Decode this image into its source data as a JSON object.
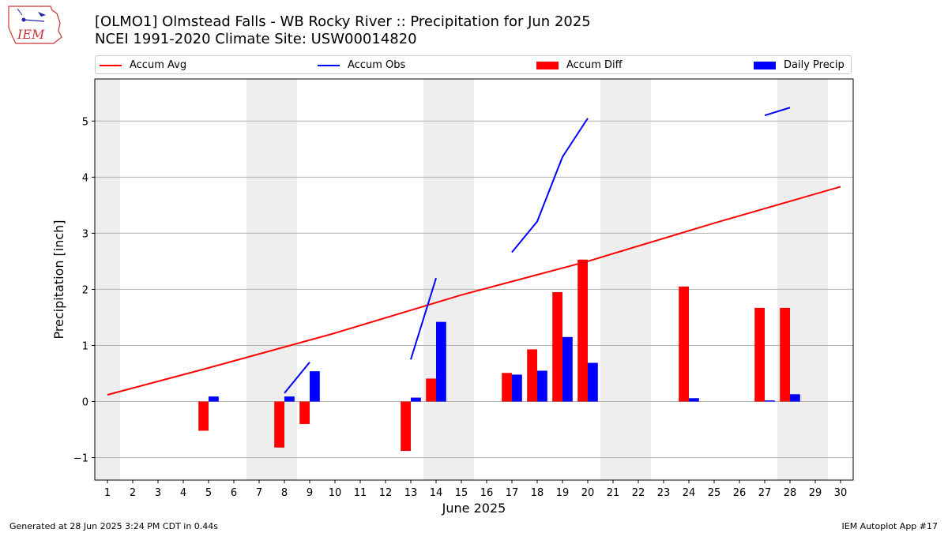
{
  "header": {
    "title_line1": "[OLMO1] Olmstead Falls - WB Rocky River :: Precipitation for Jun 2025",
    "title_line2": "NCEI 1991-2020 Climate Site: USW00014820",
    "logo_text": "IEM"
  },
  "legend": {
    "accum_avg": "Accum Avg",
    "accum_obs": "Accum Obs",
    "accum_diff": "Accum Diff",
    "daily_precip": "Daily Precip"
  },
  "footer": {
    "generated": "Generated at 28 Jun 2025 3:24 PM CDT in 0.44s",
    "app": "IEM Autoplot App #17"
  },
  "colors": {
    "accum_avg": "#ff0000",
    "accum_obs": "#0000ff",
    "accum_diff": "#ff0000",
    "daily_precip": "#0000ff",
    "weekend_shade": "#eeeeee",
    "grid": "#b0b0b0"
  },
  "chart_data": {
    "type": "bar",
    "xlabel": "June 2025",
    "ylabel": "Precipitation [inch]",
    "xlim": [
      0.5,
      30.5
    ],
    "ylim": [
      -1.4,
      5.75
    ],
    "yticks": [
      -1,
      0,
      1,
      2,
      3,
      4,
      5
    ],
    "ytick_labels": [
      "−1",
      "0",
      "1",
      "2",
      "3",
      "4",
      "5"
    ],
    "days": [
      1,
      2,
      3,
      4,
      5,
      6,
      7,
      8,
      9,
      10,
      11,
      12,
      13,
      14,
      15,
      16,
      17,
      18,
      19,
      20,
      21,
      22,
      23,
      24,
      25,
      26,
      27,
      28,
      29,
      30
    ],
    "grid": "horizontal",
    "legend_position": "top",
    "shaded_weekends": [
      [
        0.5,
        1.5
      ],
      [
        6.5,
        8.5
      ],
      [
        13.5,
        15.5
      ],
      [
        20.5,
        22.5
      ],
      [
        27.5,
        29.5
      ]
    ],
    "series": [
      {
        "name": "Accum Avg",
        "kind": "line",
        "x": [
          1,
          5,
          10,
          15,
          20,
          25,
          30
        ],
        "values": [
          0.12,
          0.6,
          1.22,
          1.9,
          2.5,
          3.18,
          3.83
        ]
      },
      {
        "name": "Accum Obs",
        "kind": "line",
        "segments": [
          {
            "x": [
              8,
              9
            ],
            "values": [
              0.15,
              0.7
            ]
          },
          {
            "x": [
              13,
              14
            ],
            "values": [
              0.75,
              2.2
            ]
          },
          {
            "x": [
              17,
              18,
              19,
              20
            ],
            "values": [
              2.66,
              3.21,
              4.36,
              5.05
            ]
          },
          {
            "x": [
              27,
              28
            ],
            "values": [
              5.1,
              5.24
            ]
          }
        ]
      },
      {
        "name": "Accum Diff",
        "kind": "bar",
        "x": [
          5,
          8,
          9,
          13,
          14,
          17,
          18,
          19,
          20,
          24,
          27,
          28
        ],
        "values": [
          -0.52,
          -0.82,
          -0.4,
          -0.88,
          0.41,
          0.51,
          0.93,
          1.95,
          2.53,
          2.05,
          1.67,
          1.67
        ]
      },
      {
        "name": "Daily Precip",
        "kind": "bar",
        "x": [
          5,
          8,
          9,
          13,
          14,
          17,
          18,
          19,
          20,
          24,
          27,
          28
        ],
        "values": [
          0.09,
          0.09,
          0.54,
          0.07,
          1.42,
          0.48,
          0.55,
          1.15,
          0.69,
          0.06,
          0.02,
          0.13
        ]
      }
    ]
  }
}
